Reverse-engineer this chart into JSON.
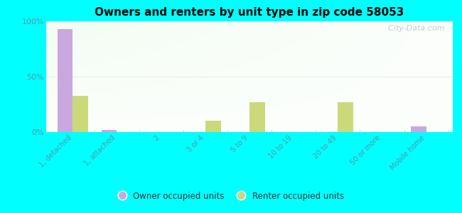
{
  "title": "Owners and renters by unit type in zip code 58053",
  "categories": [
    "1, detached",
    "1, attached",
    "2",
    "3 or 4",
    "5 to 9",
    "10 to 19",
    "20 to 49",
    "50 or more",
    "Mobile home"
  ],
  "owner_values": [
    93,
    2,
    0,
    0,
    0,
    0,
    0,
    0,
    5
  ],
  "renter_values": [
    33,
    0,
    0,
    10,
    27,
    0,
    27,
    0,
    0
  ],
  "owner_color": "#c9a8e0",
  "renter_color": "#ccd97a",
  "outer_bg": "#00ffff",
  "ylim": [
    0,
    100
  ],
  "yticks": [
    0,
    50,
    100
  ],
  "ytick_labels": [
    "0%",
    "50%",
    "100%"
  ],
  "bar_width": 0.35,
  "watermark": "    City-Data.com",
  "legend_owner": "Owner occupied units",
  "legend_renter": "Renter occupied units",
  "tick_color": "#5599aa",
  "grid_color": "#e8eeea"
}
